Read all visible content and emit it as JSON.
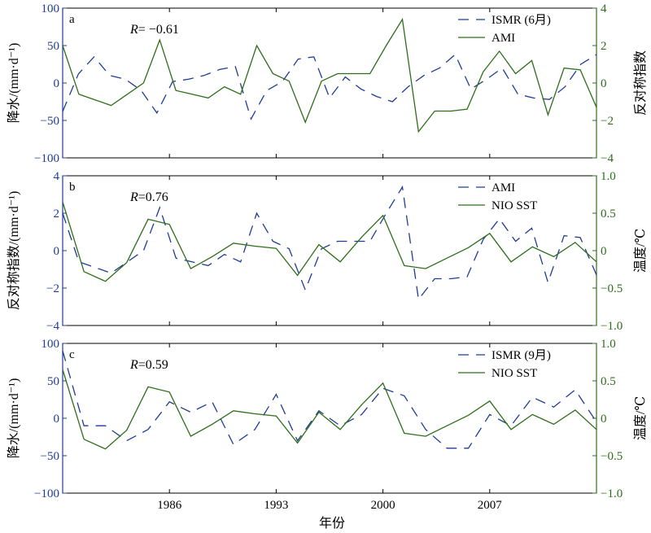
{
  "chart_data": {
    "type": "line",
    "xlabel": "年份",
    "x_ticks": [
      "1986",
      "1993",
      "2000",
      "2007"
    ],
    "years": [
      1979,
      1980,
      1981,
      1982,
      1983,
      1984,
      1985,
      1986,
      1987,
      1988,
      1989,
      1990,
      1991,
      1992,
      1993,
      1994,
      1995,
      1996,
      1997,
      1998,
      1999,
      2000,
      2001,
      2002,
      2003,
      2004,
      2005,
      2006,
      2007,
      2008,
      2009,
      2010,
      2011,
      2012,
      2013,
      2014
    ],
    "panels": [
      {
        "letter": "a",
        "r_label": "R",
        "r_value": "= −0.61",
        "left_axis": {
          "label": "降水/(mm·d⁻¹)",
          "ticks": [
            "100",
            "50",
            "0",
            "−50",
            "−100"
          ],
          "range": [
            -100,
            100
          ],
          "color": "#1f3c96"
        },
        "right_axis": {
          "label": "反对称指数",
          "ticks": [
            "4",
            "2",
            "0",
            "−2",
            "−4"
          ],
          "range": [
            -4,
            4
          ],
          "color": "#2e6e1a"
        },
        "series": [
          {
            "name": "ISMR (6月)",
            "axis": "left",
            "style": "dashed",
            "color": "#1f3c96",
            "values": [
              -38,
              12,
              35,
              10,
              5,
              -10,
              -40,
              2,
              5,
              10,
              18,
              22,
              -48,
              -10,
              2,
              32,
              35,
              -20,
              8,
              -8,
              -18,
              -25,
              -5,
              10,
              20,
              38,
              -8,
              5,
              20,
              -15,
              -20,
              -22,
              -5,
              25,
              38
            ]
          },
          {
            "name": "AMI",
            "axis": "right",
            "style": "solid",
            "color": "#2e6e1a",
            "values": [
              2.0,
              -0.6,
              -0.9,
              -1.2,
              -0.6,
              0.0,
              2.3,
              -0.4,
              -0.6,
              -0.8,
              -0.2,
              -0.6,
              2.0,
              0.5,
              0.1,
              -2.1,
              0.1,
              0.5,
              0.5,
              0.5,
              2.0,
              3.4,
              -2.6,
              -1.5,
              -1.5,
              -1.4,
              0.6,
              1.7,
              0.5,
              1.2,
              -1.7,
              0.8,
              0.7,
              -1.3
            ]
          }
        ]
      },
      {
        "letter": "b",
        "r_label": "R",
        "r_value": "=0.76",
        "left_axis": {
          "label": "反对称指数/(mm·d⁻¹)",
          "ticks": [
            "4",
            "2",
            "0",
            "−2",
            "−4"
          ],
          "range": [
            -4,
            4
          ],
          "color": "#1f3c96"
        },
        "right_axis": {
          "label": "温度/℃",
          "ticks": [
            "1.0",
            "0.5",
            "0",
            "−0.5",
            "−1.0"
          ],
          "range": [
            -1,
            1
          ],
          "color": "#2e6e1a"
        },
        "series": [
          {
            "name": "AMI",
            "axis": "left",
            "style": "dashed",
            "color": "#1f3c96",
            "values": [
              2.0,
              -0.6,
              -0.9,
              -1.2,
              -0.6,
              0.0,
              2.3,
              -0.4,
              -0.6,
              -0.8,
              -0.2,
              -0.6,
              2.0,
              0.5,
              0.1,
              -2.1,
              0.1,
              0.5,
              0.5,
              0.5,
              2.0,
              3.4,
              -2.6,
              -1.5,
              -1.5,
              -1.4,
              0.6,
              1.7,
              0.5,
              1.2,
              -1.7,
              0.8,
              0.7,
              -1.3
            ]
          },
          {
            "name": "NIO SST",
            "axis": "right",
            "style": "solid",
            "color": "#2e6e1a",
            "values": [
              0.65,
              -0.28,
              -0.41,
              -0.16,
              0.42,
              0.35,
              -0.24,
              -0.08,
              0.1,
              0.06,
              0.03,
              -0.33,
              0.08,
              -0.15,
              0.18,
              0.47,
              -0.2,
              -0.24,
              -0.1,
              0.04,
              0.23,
              -0.15,
              0.05,
              -0.08,
              0.11,
              -0.15
            ]
          }
        ]
      },
      {
        "letter": "c",
        "r_label": "R",
        "r_value": "=0.59",
        "left_axis": {
          "label": "降水/(mm·d⁻¹)",
          "ticks": [
            "100",
            "50",
            "0",
            "−50",
            "−100"
          ],
          "range": [
            -100,
            100
          ],
          "color": "#1f3c96"
        },
        "right_axis": {
          "label": "温度/℃",
          "ticks": [
            "1.0",
            "0.5",
            "0",
            "−0.5",
            "−1.0"
          ],
          "range": [
            -1,
            1
          ],
          "color": "#2e6e1a"
        },
        "series": [
          {
            "name": "ISMR (9月)",
            "axis": "left",
            "style": "dashed",
            "color": "#1f3c96",
            "values": [
              90,
              -10,
              -10,
              -30,
              -15,
              22,
              8,
              22,
              -35,
              -15,
              32,
              -30,
              10,
              -10,
              5,
              40,
              30,
              -15,
              -40,
              -40,
              5,
              -10,
              28,
              15,
              38,
              -5
            ]
          },
          {
            "name": "NIO SST",
            "axis": "right",
            "style": "solid",
            "color": "#2e6e1a",
            "values": [
              0.65,
              -0.28,
              -0.41,
              -0.16,
              0.42,
              0.35,
              -0.24,
              -0.08,
              0.1,
              0.06,
              0.03,
              -0.33,
              0.08,
              -0.15,
              0.18,
              0.47,
              -0.2,
              -0.24,
              -0.1,
              0.04,
              0.23,
              -0.15,
              0.05,
              -0.08,
              0.11,
              -0.15
            ]
          }
        ]
      }
    ]
  }
}
